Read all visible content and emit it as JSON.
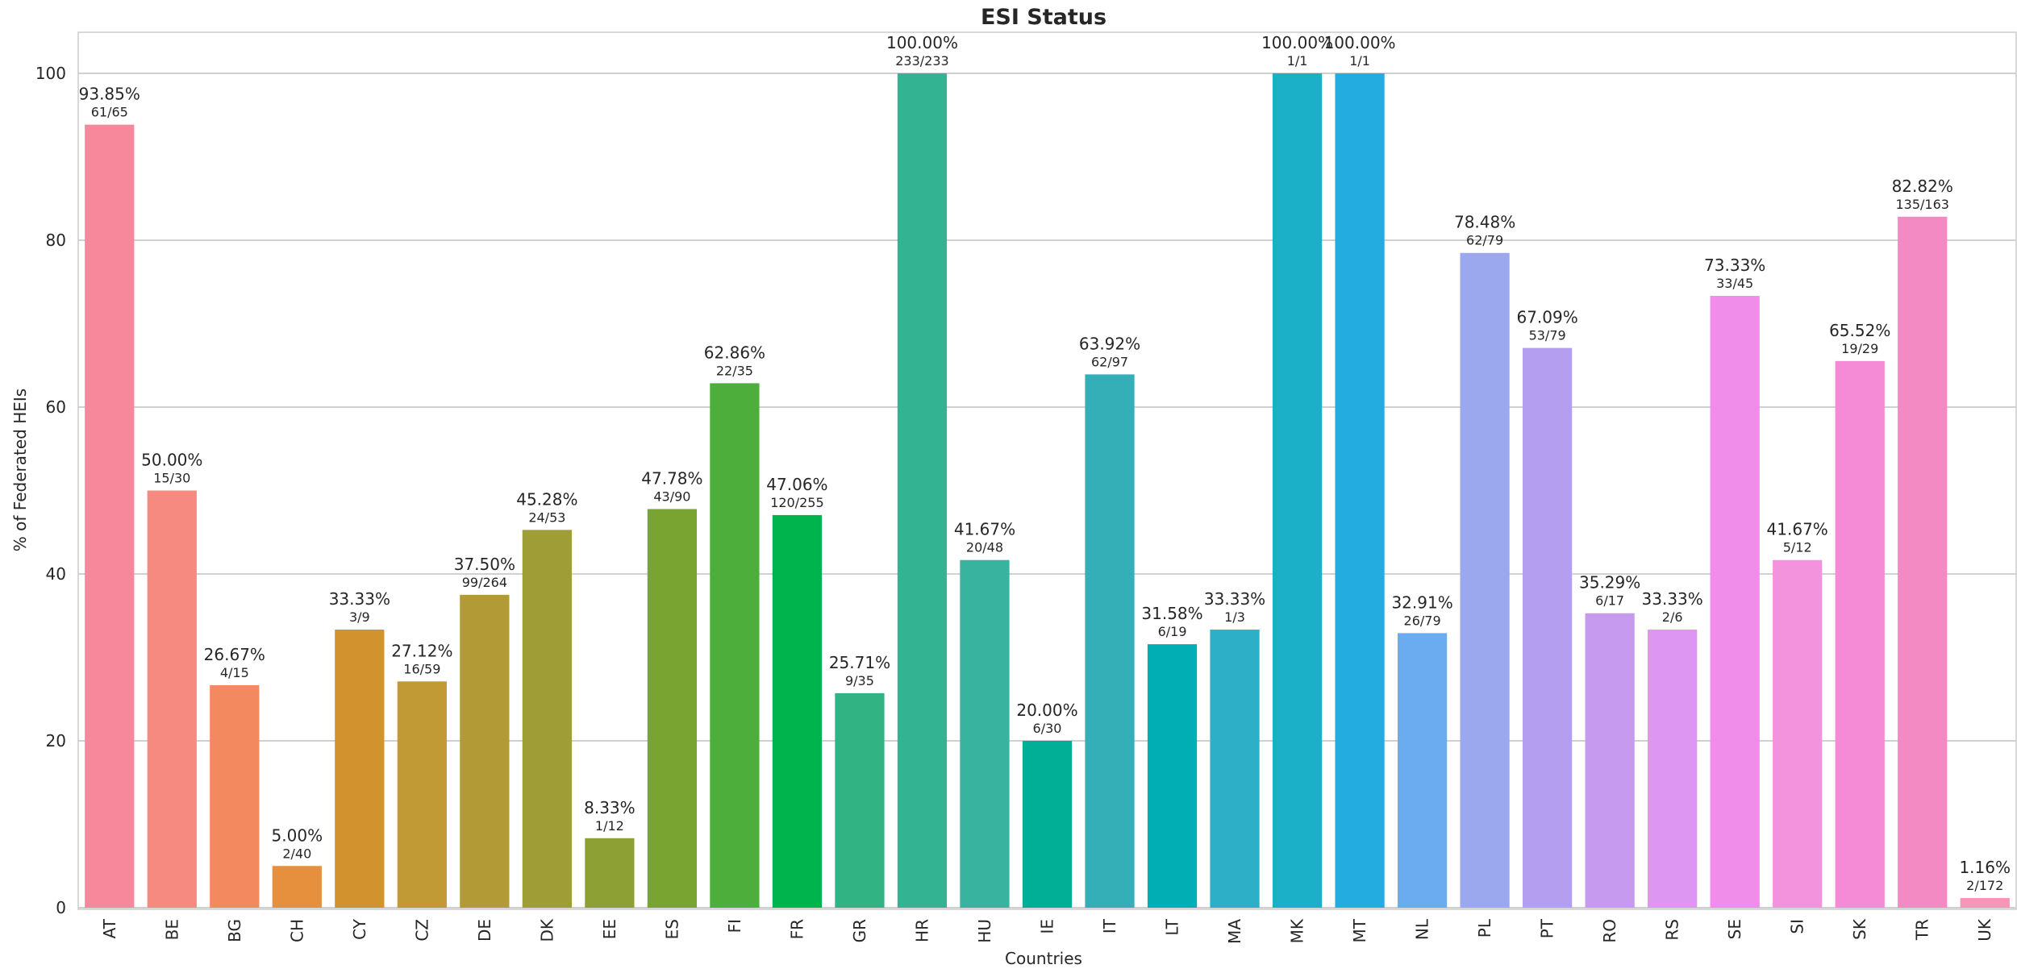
{
  "chart_data": {
    "type": "bar",
    "title": "ESI Status",
    "xlabel": "Countries",
    "ylabel": "% of Federated HEIs",
    "ylim": [
      0,
      105
    ],
    "yticks": [
      "0",
      "20",
      "40",
      "60",
      "80",
      "100"
    ],
    "grid": "horizontal",
    "categories": [
      "AT",
      "BE",
      "BG",
      "CH",
      "CY",
      "CZ",
      "DE",
      "DK",
      "EE",
      "ES",
      "FI",
      "FR",
      "GR",
      "HR",
      "HU",
      "IE",
      "IT",
      "LT",
      "MA",
      "MK",
      "MT",
      "NL",
      "PL",
      "PT",
      "RO",
      "RS",
      "SE",
      "SI",
      "SK",
      "TR",
      "UK"
    ],
    "values": [
      93.85,
      50.0,
      26.67,
      5.0,
      33.33,
      27.12,
      37.5,
      45.28,
      8.33,
      47.78,
      62.86,
      47.06,
      25.71,
      100.0,
      41.67,
      20.0,
      63.92,
      31.58,
      33.33,
      100.0,
      100.0,
      32.91,
      78.48,
      67.09,
      35.29,
      33.33,
      73.33,
      41.67,
      65.52,
      82.82,
      1.16
    ],
    "percent_labels": [
      "93.85%",
      "50.00%",
      "26.67%",
      "5.00%",
      "33.33%",
      "27.12%",
      "37.50%",
      "45.28%",
      "8.33%",
      "47.78%",
      "62.86%",
      "47.06%",
      "25.71%",
      "100.00%",
      "41.67%",
      "20.00%",
      "63.92%",
      "31.58%",
      "33.33%",
      "100.00%",
      "100.00%",
      "32.91%",
      "78.48%",
      "67.09%",
      "35.29%",
      "33.33%",
      "73.33%",
      "41.67%",
      "65.52%",
      "82.82%",
      "1.16%"
    ],
    "count_labels": [
      "61/65",
      "15/30",
      "4/15",
      "2/40",
      "3/9",
      "16/59",
      "99/264",
      "24/53",
      "1/12",
      "43/90",
      "22/35",
      "120/255",
      "9/35",
      "233/233",
      "20/48",
      "6/30",
      "62/97",
      "6/19",
      "1/3",
      "1/1",
      "1/1",
      "26/79",
      "62/79",
      "53/79",
      "6/17",
      "2/6",
      "33/45",
      "5/12",
      "19/29",
      "135/163",
      "2/172"
    ],
    "colors": [
      "#f7879a",
      "#f68a81",
      "#f2895f",
      "#e6903e",
      "#d2922d",
      "#c19a36",
      "#b29b36",
      "#9f9d35",
      "#8ca033",
      "#79a432",
      "#4dae3b",
      "#00b44d",
      "#32b383",
      "#33b391",
      "#37b3a0",
      "#00af96",
      "#34afb8",
      "#00aeb4",
      "#2db0c7",
      "#1bafc8",
      "#22ace0",
      "#6bacf0",
      "#9ca8ee",
      "#b49ef0",
      "#c69aef",
      "#dd96f2",
      "#f08ce9",
      "#f393dd",
      "#f58ad6",
      "#f48ac4",
      "#f695b7"
    ]
  }
}
